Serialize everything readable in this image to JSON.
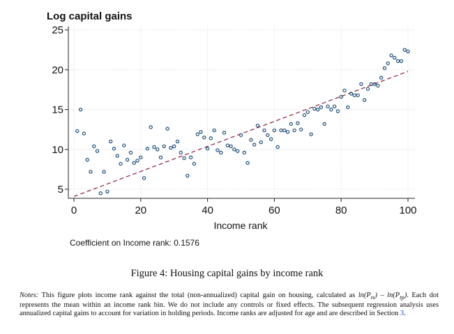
{
  "chart_data": {
    "type": "scatter",
    "title": "",
    "ylabel": "Log capital gains",
    "xlabel": "Income rank",
    "xlim": [
      0,
      100
    ],
    "ylim": [
      5,
      25
    ],
    "xticks": [
      0,
      20,
      40,
      60,
      80,
      100
    ],
    "yticks": [
      5,
      10,
      15,
      20,
      25
    ],
    "grid": "dotted horizontal and vertical",
    "marker": "hollow circle",
    "colors": {
      "points": "#1f4e79",
      "fit_line": "#8b1c3a"
    },
    "fit_line": {
      "style": "dashed",
      "x": [
        0,
        100
      ],
      "y": [
        4.1,
        19.8
      ]
    },
    "annotation": "Coefficient on Income rank: 0.1576",
    "points": [
      [
        1,
        12.3
      ],
      [
        2,
        15.0
      ],
      [
        3,
        12.0
      ],
      [
        4,
        8.7
      ],
      [
        5,
        7.2
      ],
      [
        6,
        10.4
      ],
      [
        7,
        9.8
      ],
      [
        8,
        4.5
      ],
      [
        9,
        7.2
      ],
      [
        10,
        4.7
      ],
      [
        11,
        11.0
      ],
      [
        12,
        10.1
      ],
      [
        13,
        9.2
      ],
      [
        14,
        8.2
      ],
      [
        15,
        10.5
      ],
      [
        16,
        8.7
      ],
      [
        17,
        9.6
      ],
      [
        18,
        8.3
      ],
      [
        19,
        8.6
      ],
      [
        20,
        9.0
      ],
      [
        21,
        6.4
      ],
      [
        22,
        10.1
      ],
      [
        23,
        12.8
      ],
      [
        24,
        10.3
      ],
      [
        25,
        10.0
      ],
      [
        26,
        9.0
      ],
      [
        27,
        10.4
      ],
      [
        28,
        12.6
      ],
      [
        29,
        10.2
      ],
      [
        30,
        10.4
      ],
      [
        31,
        11.0
      ],
      [
        32,
        9.6
      ],
      [
        33,
        8.9
      ],
      [
        34,
        6.7
      ],
      [
        35,
        9.0
      ],
      [
        36,
        8.2
      ],
      [
        37,
        11.9
      ],
      [
        38,
        12.2
      ],
      [
        39,
        11.5
      ],
      [
        40,
        10.1
      ],
      [
        41,
        11.4
      ],
      [
        42,
        12.4
      ],
      [
        43,
        9.9
      ],
      [
        44,
        9.6
      ],
      [
        45,
        12.1
      ],
      [
        46,
        10.5
      ],
      [
        47,
        10.4
      ],
      [
        48,
        10.0
      ],
      [
        49,
        9.8
      ],
      [
        50,
        11.8
      ],
      [
        51,
        9.6
      ],
      [
        52,
        8.3
      ],
      [
        53,
        11.2
      ],
      [
        54,
        10.6
      ],
      [
        55,
        13.0
      ],
      [
        56,
        10.9
      ],
      [
        57,
        12.4
      ],
      [
        58,
        11.8
      ],
      [
        59,
        11.3
      ],
      [
        60,
        12.4
      ],
      [
        61,
        10.3
      ],
      [
        62,
        12.4
      ],
      [
        63,
        12.4
      ],
      [
        64,
        12.2
      ],
      [
        65,
        13.2
      ],
      [
        66,
        12.4
      ],
      [
        67,
        13.3
      ],
      [
        68,
        12.5
      ],
      [
        69,
        14.3
      ],
      [
        70,
        14.7
      ],
      [
        71,
        11.9
      ],
      [
        72,
        15.1
      ],
      [
        73,
        15.0
      ],
      [
        74,
        15.3
      ],
      [
        75,
        13.2
      ],
      [
        76,
        15.4
      ],
      [
        77,
        15.0
      ],
      [
        78,
        15.4
      ],
      [
        79,
        14.8
      ],
      [
        80,
        16.6
      ],
      [
        81,
        17.4
      ],
      [
        82,
        15.3
      ],
      [
        83,
        17.0
      ],
      [
        84,
        16.8
      ],
      [
        85,
        16.8
      ],
      [
        86,
        18.2
      ],
      [
        87,
        16.2
      ],
      [
        88,
        17.6
      ],
      [
        89,
        18.2
      ],
      [
        90,
        18.2
      ],
      [
        91,
        18.0
      ],
      [
        92,
        19.0
      ],
      [
        93,
        20.2
      ],
      [
        94,
        20.8
      ],
      [
        95,
        21.8
      ],
      [
        96,
        21.5
      ],
      [
        97,
        21.1
      ],
      [
        98,
        21.1
      ],
      [
        99,
        22.5
      ],
      [
        100,
        22.3
      ]
    ]
  },
  "figure": {
    "caption": "Figure 4: Housing capital gains by income rank",
    "notes_label": "Notes:",
    "notes_p1": " This figure plots income rank against the total (non-annualized) capital gain on housing, calculated as ",
    "notes_m1": "ln(P",
    "notes_m1s": "ts",
    "notes_m2": ") – ln(P",
    "notes_m2s": "tp",
    "notes_m3": ")",
    "notes_p2": ". Each dot represents the mean within an income rank bin. We do not include any controls or fixed effects. The subsequent regression analysis uses annualized capital gains to account for variation in holding periods. Income ranks are adjusted for age and are described in Section ",
    "notes_ref": "3",
    "notes_p3": "."
  }
}
